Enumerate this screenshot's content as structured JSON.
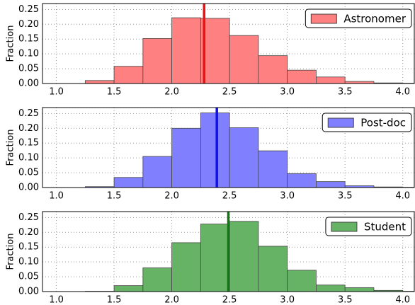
{
  "chart_data": [
    {
      "type": "histogram",
      "ylabel": "Fraction",
      "bins": [
        1.0,
        1.25,
        1.5,
        1.75,
        2.0,
        2.25,
        2.5,
        2.75,
        3.0,
        3.25,
        3.5,
        3.75,
        4.0,
        4.25
      ],
      "series": [
        {
          "name": "Astronomer",
          "color": "#ff8080",
          "values": [
            0,
            0.01,
            0.058,
            0.152,
            0.222,
            0.22,
            0.162,
            0.094,
            0.045,
            0.022,
            0.007,
            0.002,
            0.001
          ]
        }
      ],
      "mean": {
        "value": 2.28,
        "color": "#ee1111"
      },
      "xlim": [
        0.88,
        4.1
      ],
      "ylim": [
        0,
        0.27
      ],
      "xticks": [
        {
          "value": 1,
          "label": "1.0"
        },
        1.5,
        {
          "value": 2,
          "label": "2.0"
        },
        2.5,
        {
          "value": 3,
          "label": "3.0"
        },
        3.5,
        {
          "value": 4,
          "label": "4.0"
        }
      ],
      "yticks": [
        {
          "value": 0,
          "label": "0.00"
        },
        0.05,
        {
          "value": 0.1,
          "label": "0.10"
        },
        0.15,
        {
          "value": 0.2,
          "label": "0.20"
        },
        0.25
      ],
      "grid": true,
      "legend": "upper right"
    },
    {
      "type": "histogram",
      "ylabel": "Fraction",
      "bins": [
        1.0,
        1.25,
        1.5,
        1.75,
        2.0,
        2.25,
        2.5,
        2.75,
        3.0,
        3.25,
        3.5,
        3.75,
        4.0,
        4.25
      ],
      "series": [
        {
          "name": "Post-doc",
          "color": "#8080ff",
          "values": [
            0,
            0.003,
            0.034,
            0.105,
            0.2,
            0.252,
            0.202,
            0.124,
            0.047,
            0.02,
            0.006,
            0.002,
            0.001
          ]
        }
      ],
      "mean": {
        "value": 2.39,
        "color": "#1111ee"
      },
      "xlim": [
        0.88,
        4.1
      ],
      "ylim": [
        0,
        0.27
      ],
      "xticks": [
        {
          "value": 1,
          "label": "1.0"
        },
        1.5,
        {
          "value": 2,
          "label": "2.0"
        },
        2.5,
        {
          "value": 3,
          "label": "3.0"
        },
        3.5,
        {
          "value": 4,
          "label": "4.0"
        }
      ],
      "yticks": [
        {
          "value": 0,
          "label": "0.00"
        },
        0.05,
        {
          "value": 0.1,
          "label": "0.10"
        },
        0.15,
        {
          "value": 0.2,
          "label": "0.20"
        },
        0.25
      ],
      "grid": true,
      "legend": "upper right"
    },
    {
      "type": "histogram",
      "ylabel": "Fraction",
      "bins": [
        1.0,
        1.25,
        1.5,
        1.75,
        2.0,
        2.25,
        2.5,
        2.75,
        3.0,
        3.25,
        3.5,
        3.75,
        4.0,
        4.25
      ],
      "series": [
        {
          "name": "Student",
          "color": "#66b366",
          "values": [
            0,
            0.001,
            0.02,
            0.08,
            0.165,
            0.228,
            0.237,
            0.153,
            0.072,
            0.022,
            0.013,
            0.004,
            0.001
          ]
        }
      ],
      "mean": {
        "value": 2.49,
        "color": "#117711"
      },
      "xlim": [
        0.88,
        4.1
      ],
      "ylim": [
        0,
        0.27
      ],
      "xticks": [
        {
          "value": 1,
          "label": "1.0"
        },
        1.5,
        {
          "value": 2,
          "label": "2.0"
        },
        2.5,
        {
          "value": 3,
          "label": "3.0"
        },
        3.5,
        {
          "value": 4,
          "label": "4.0"
        }
      ],
      "yticks": [
        {
          "value": 0,
          "label": "0.00"
        },
        0.05,
        {
          "value": 0.1,
          "label": "0.10"
        },
        0.15,
        {
          "value": 0.2,
          "label": "0.20"
        },
        0.25
      ],
      "grid": true,
      "legend": "upper right"
    }
  ]
}
